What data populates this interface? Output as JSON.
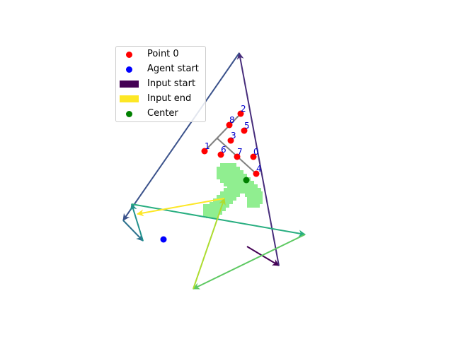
{
  "chart_data": {
    "type": "scatter",
    "title": "",
    "xlabel": "",
    "ylabel": "",
    "xlim": [
      0,
      640
    ],
    "ylim": [
      480,
      0
    ],
    "axes_visible": false,
    "grid": false,
    "legend": {
      "placement": "upper-left",
      "entries": [
        {
          "label": "Point 0",
          "kind": "dot",
          "color": "#ff0000"
        },
        {
          "label": "Agent start",
          "kind": "dot",
          "color": "#0000ff"
        },
        {
          "label": "Input start",
          "kind": "patch",
          "color": "#440154"
        },
        {
          "label": "Input end",
          "kind": "patch",
          "color": "#fde725"
        },
        {
          "label": "Center",
          "kind": "dot",
          "color": "#008000"
        }
      ]
    },
    "red_points": [
      {
        "label": "1",
        "x": 289,
        "y": 214
      },
      {
        "label": "2",
        "x": 340,
        "y": 161
      },
      {
        "label": "3",
        "x": 326,
        "y": 199
      },
      {
        "label": "4",
        "x": 362,
        "y": 246
      },
      {
        "label": "5",
        "x": 345,
        "y": 185
      },
      {
        "label": "6",
        "x": 312,
        "y": 219
      },
      {
        "label": "7",
        "x": 335,
        "y": 222
      },
      {
        "label": "8",
        "x": 324,
        "y": 177
      },
      {
        "label": "0",
        "x": 358,
        "y": 222
      }
    ],
    "skeleton_segments": [
      [
        [
          289,
          214
        ],
        [
          340,
          161
        ]
      ],
      [
        [
          307,
          196
        ],
        [
          362,
          246
        ]
      ]
    ],
    "agent_start": {
      "x": 231,
      "y": 339
    },
    "center": {
      "x": 348,
      "y": 255
    },
    "shape_cells": [
      [
        320,
        240
      ],
      [
        325,
        240
      ],
      [
        330,
        245
      ],
      [
        335,
        250
      ],
      [
        340,
        255
      ],
      [
        345,
        260
      ],
      [
        350,
        265
      ],
      [
        355,
        270
      ],
      [
        360,
        275
      ],
      [
        362,
        280
      ],
      [
        358,
        285
      ],
      [
        315,
        245
      ],
      [
        320,
        250
      ],
      [
        325,
        255
      ],
      [
        330,
        260
      ],
      [
        340,
        260
      ],
      [
        335,
        265
      ],
      [
        330,
        270
      ],
      [
        325,
        275
      ],
      [
        320,
        280
      ],
      [
        315,
        285
      ],
      [
        310,
        290
      ],
      [
        305,
        295
      ],
      [
        300,
        300
      ],
      [
        296,
        298
      ]
    ],
    "shape_color": "#90ee90",
    "input_path": [
      {
        "from": [
          349,
          349
        ],
        "to": [
          394,
          376
        ],
        "color": "#440154"
      },
      {
        "from": [
          394,
          376
        ],
        "to": [
          338,
          75
        ],
        "color": "#472d7b"
      },
      {
        "from": [
          338,
          75
        ],
        "to": [
          174,
          312
        ],
        "color": "#3b528b"
      },
      {
        "from": [
          174,
          312
        ],
        "to": [
          202,
          341
        ],
        "color": "#2c728e"
      },
      {
        "from": [
          202,
          341
        ],
        "to": [
          186,
          289
        ],
        "color": "#21918c"
      },
      {
        "from": [
          186,
          289
        ],
        "to": [
          431,
          332
        ],
        "color": "#28ae80"
      },
      {
        "from": [
          431,
          332
        ],
        "to": [
          273,
          409
        ],
        "color": "#5ec962"
      },
      {
        "from": [
          273,
          409
        ],
        "to": [
          317,
          281
        ],
        "color": "#addc30"
      },
      {
        "from": [
          317,
          281
        ],
        "to": [
          194,
          303
        ],
        "color": "#fde725"
      }
    ]
  }
}
